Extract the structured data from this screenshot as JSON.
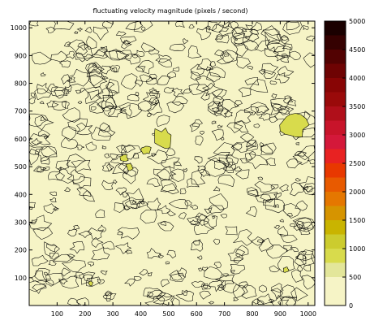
{
  "chart_data": {
    "type": "heatmap",
    "subtype": "filled-contour",
    "title": "fluctuating velocity magnitude  (pixels / second)",
    "x": {
      "min": 0,
      "max": 1024,
      "ticks": [
        100,
        200,
        300,
        400,
        500,
        600,
        700,
        800,
        900,
        1000
      ]
    },
    "y": {
      "min": 0,
      "max": 1024,
      "ticks": [
        100,
        200,
        300,
        400,
        500,
        600,
        700,
        800,
        900,
        1000
      ]
    },
    "colorbar": {
      "min": 0,
      "max": 5000,
      "tick_labels": [
        "0",
        "500",
        "1000",
        "1500",
        "2000",
        "2500",
        "3000",
        "3500",
        "4000",
        "4500",
        "5000"
      ],
      "levels": [
        {
          "from": 0,
          "to": 500,
          "color": "#f6f4c6"
        },
        {
          "from": 500,
          "to": 750,
          "color": "#e3e69a"
        },
        {
          "from": 750,
          "to": 1000,
          "color": "#d8db4c"
        },
        {
          "from": 1000,
          "to": 1250,
          "color": "#cccc2e"
        },
        {
          "from": 1250,
          "to": 1500,
          "color": "#c9b400"
        },
        {
          "from": 1500,
          "to": 1750,
          "color": "#d69400"
        },
        {
          "from": 1750,
          "to": 2000,
          "color": "#e57700"
        },
        {
          "from": 2000,
          "to": 2250,
          "color": "#e85a00"
        },
        {
          "from": 2250,
          "to": 2500,
          "color": "#e83800"
        },
        {
          "from": 2500,
          "to": 2750,
          "color": "#e82222"
        },
        {
          "from": 2750,
          "to": 3000,
          "color": "#d4183a"
        },
        {
          "from": 3000,
          "to": 3250,
          "color": "#c8142a"
        },
        {
          "from": 3250,
          "to": 3500,
          "color": "#b00f1a"
        },
        {
          "from": 3500,
          "to": 3750,
          "color": "#9a0a0a"
        },
        {
          "from": 3750,
          "to": 4000,
          "color": "#880505"
        },
        {
          "from": 4000,
          "to": 4250,
          "color": "#6e0303"
        },
        {
          "from": 4250,
          "to": 4500,
          "color": "#520202"
        },
        {
          "from": 4500,
          "to": 4750,
          "color": "#350101"
        },
        {
          "from": 4750,
          "to": 5000,
          "color": "#1a0000"
        }
      ]
    },
    "background_level": 0,
    "highlight_regions": [
      {
        "x": 945,
        "y": 650,
        "r": 60,
        "value": 900
      },
      {
        "x": 480,
        "y": 600,
        "r": 45,
        "value": 850
      },
      {
        "x": 420,
        "y": 560,
        "r": 20,
        "value": 800
      },
      {
        "x": 340,
        "y": 530,
        "r": 18,
        "value": 800
      },
      {
        "x": 360,
        "y": 500,
        "r": 15,
        "value": 750
      },
      {
        "x": 920,
        "y": 130,
        "r": 12,
        "value": 800
      },
      {
        "x": 220,
        "y": 80,
        "r": 10,
        "value": 750
      }
    ]
  }
}
